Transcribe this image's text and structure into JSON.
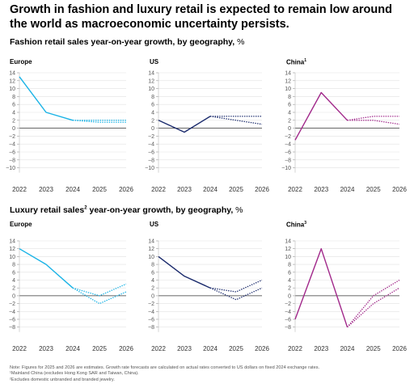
{
  "header": {
    "title": "Growth in fashion and luxury retail is expected to remain low around the world as macroeconomic uncertainty persists."
  },
  "sections": [
    {
      "subtitle": "Fashion retail sales year-on-year growth, by geography,",
      "subtitle_sup": "",
      "unit": "%",
      "panels": [
        {
          "title": "Europe",
          "sup": "",
          "color": "#1ab3e6",
          "actual": [
            [
              2022,
              13
            ],
            [
              2023,
              4
            ],
            [
              2024,
              2
            ]
          ],
          "forecast": [
            [
              [
                2024,
                2
              ],
              [
                2025,
                2
              ],
              [
                2026,
                2
              ]
            ],
            [
              [
                2024,
                2
              ],
              [
                2025,
                1.5
              ],
              [
                2026,
                1.5
              ]
            ]
          ]
        },
        {
          "title": "US",
          "sup": "",
          "color": "#1a2a6c",
          "actual": [
            [
              2022,
              2
            ],
            [
              2023,
              -1
            ],
            [
              2024,
              3
            ]
          ],
          "forecast": [
            [
              [
                2024,
                3
              ],
              [
                2025,
                3
              ],
              [
                2026,
                3
              ]
            ],
            [
              [
                2024,
                3
              ],
              [
                2025,
                2
              ],
              [
                2026,
                1
              ]
            ]
          ]
        },
        {
          "title": "China",
          "sup": "1",
          "color": "#a1288a",
          "actual": [
            [
              2022,
              -3
            ],
            [
              2023,
              9
            ],
            [
              2024,
              2
            ]
          ],
          "forecast": [
            [
              [
                2024,
                2
              ],
              [
                2025,
                3
              ],
              [
                2026,
                3
              ]
            ],
            [
              [
                2024,
                2
              ],
              [
                2025,
                2
              ],
              [
                2026,
                1
              ]
            ]
          ]
        }
      ]
    },
    {
      "subtitle": "Luxury retail sales",
      "subtitle_sup": "2",
      "subtitle_rest": " year-on-year growth, by geography,",
      "unit": "%",
      "panels": [
        {
          "title": "Europe",
          "sup": "",
          "color": "#1ab3e6",
          "actual": [
            [
              2022,
              12
            ],
            [
              2023,
              8
            ],
            [
              2024,
              2
            ]
          ],
          "forecast": [
            [
              [
                2024,
                2
              ],
              [
                2025,
                0
              ],
              [
                2026,
                3
              ]
            ],
            [
              [
                2024,
                2
              ],
              [
                2025,
                -2
              ],
              [
                2026,
                1
              ]
            ]
          ]
        },
        {
          "title": "US",
          "sup": "",
          "color": "#1a2a6c",
          "actual": [
            [
              2022,
              10
            ],
            [
              2023,
              5
            ],
            [
              2024,
              2
            ]
          ],
          "forecast": [
            [
              [
                2024,
                2
              ],
              [
                2025,
                1
              ],
              [
                2026,
                4
              ]
            ],
            [
              [
                2024,
                2
              ],
              [
                2025,
                -1
              ],
              [
                2026,
                2
              ]
            ]
          ]
        },
        {
          "title": "China",
          "sup": "3",
          "color": "#a1288a",
          "actual": [
            [
              2022,
              -6
            ],
            [
              2023,
              12
            ],
            [
              2024,
              -8
            ]
          ],
          "forecast": [
            [
              [
                2024,
                -8
              ],
              [
                2025,
                0
              ],
              [
                2026,
                4
              ]
            ],
            [
              [
                2024,
                -8
              ],
              [
                2025,
                -2
              ],
              [
                2026,
                2
              ]
            ]
          ]
        }
      ]
    }
  ],
  "axis": {
    "x_ticks": [
      "2022",
      "2023",
      "2024",
      "2025",
      "2026"
    ],
    "fashion_y_ticks": [
      "14",
      "12",
      "10",
      "8",
      "6",
      "4",
      "2",
      "0",
      "−2",
      "−4",
      "−6",
      "−8",
      "−10"
    ],
    "luxury_y_ticks": [
      "14",
      "12",
      "10",
      "8",
      "6",
      "4",
      "2",
      "0",
      "−2",
      "−4",
      "−6",
      "−8"
    ]
  },
  "notes": [
    "Note: Figures for 2025 and 2026 are estimates. Growth rate forecasts are calculated on actual rates converted to US dollars on fixed 2024 exchange rates.",
    "¹Mainland China (excludes Hong Kong SAR and Taiwan, China).",
    "²Excludes domestic unbranded and branded jewelry."
  ],
  "chart_data": [
    {
      "type": "line",
      "title": "Europe",
      "ylim": [
        -10,
        14
      ],
      "x": [
        2022,
        2023,
        2024,
        2025,
        2026
      ],
      "series": [
        {
          "values": [
            13,
            4,
            2,
            null,
            null
          ]
        },
        {
          "values": [
            null,
            null,
            2,
            2,
            2
          ]
        },
        {
          "values": [
            null,
            null,
            2,
            1.5,
            1.5
          ]
        }
      ]
    },
    {
      "type": "line",
      "title": "US",
      "ylim": [
        -10,
        14
      ],
      "x": [
        2022,
        2023,
        2024,
        2025,
        2026
      ],
      "series": [
        {
          "values": [
            2,
            -1,
            3,
            null,
            null
          ]
        },
        {
          "values": [
            null,
            null,
            3,
            3,
            3
          ]
        },
        {
          "values": [
            null,
            null,
            3,
            2,
            1
          ]
        }
      ]
    },
    {
      "type": "line",
      "title": "China",
      "ylim": [
        -10,
        14
      ],
      "x": [
        2022,
        2023,
        2024,
        2025,
        2026
      ],
      "series": [
        {
          "values": [
            -3,
            9,
            2,
            null,
            null
          ]
        },
        {
          "values": [
            null,
            null,
            2,
            3,
            3
          ]
        },
        {
          "values": [
            null,
            null,
            2,
            2,
            1
          ]
        }
      ]
    },
    {
      "type": "line",
      "title": "Europe",
      "ylim": [
        -8,
        14
      ],
      "x": [
        2022,
        2023,
        2024,
        2025,
        2026
      ],
      "series": [
        {
          "values": [
            12,
            8,
            2,
            null,
            null
          ]
        },
        {
          "values": [
            null,
            null,
            2,
            0,
            3
          ]
        },
        {
          "values": [
            null,
            null,
            2,
            -2,
            1
          ]
        }
      ]
    },
    {
      "type": "line",
      "title": "US",
      "ylim": [
        -8,
        14
      ],
      "x": [
        2022,
        2023,
        2024,
        2025,
        2026
      ],
      "series": [
        {
          "values": [
            10,
            5,
            2,
            null,
            null
          ]
        },
        {
          "values": [
            null,
            null,
            2,
            1,
            4
          ]
        },
        {
          "values": [
            null,
            null,
            2,
            -1,
            2
          ]
        }
      ]
    },
    {
      "type": "line",
      "title": "China",
      "ylim": [
        -8,
        14
      ],
      "x": [
        2022,
        2023,
        2024,
        2025,
        2026
      ],
      "series": [
        {
          "values": [
            -6,
            12,
            -8,
            null,
            null
          ]
        },
        {
          "values": [
            null,
            null,
            -8,
            0,
            4
          ]
        },
        {
          "values": [
            null,
            null,
            -8,
            -2,
            2
          ]
        }
      ]
    }
  ]
}
